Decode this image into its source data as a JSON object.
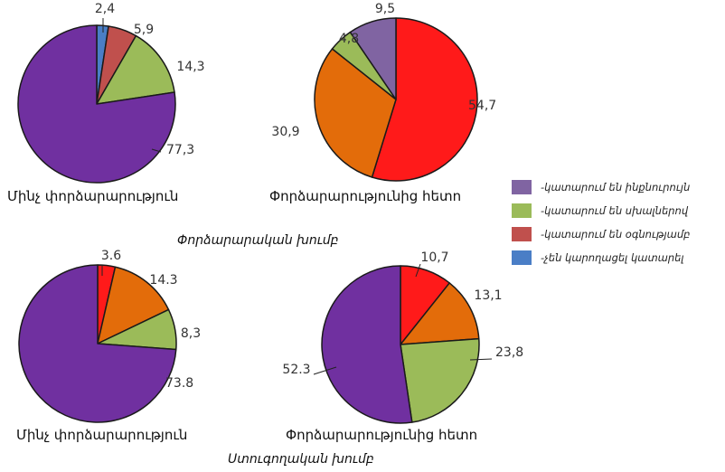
{
  "chart_data": [
    {
      "type": "pie",
      "caption": "Մինչ փորձարարություն",
      "slices": [
        {
          "label": "2,4",
          "value": 2.4,
          "color": "#4a7ec6"
        },
        {
          "label": "5,9",
          "value": 5.9,
          "color": "#c0504d"
        },
        {
          "label": "14,3",
          "value": 14.3,
          "color": "#9bbb59"
        },
        {
          "label": "77,3",
          "value": 77.3,
          "color": "#7030a0"
        }
      ]
    },
    {
      "type": "pie",
      "caption": "Փորձարարությունից հետո",
      "slices": [
        {
          "label": "54,7",
          "value": 54.7,
          "color": "#ff1a1a"
        },
        {
          "label": "30,9",
          "value": 30.9,
          "color": "#e36c0a"
        },
        {
          "label": "4,8",
          "value": 4.8,
          "color": "#9bbb59"
        },
        {
          "label": "9,5",
          "value": 9.5,
          "color": "#8064a2"
        }
      ]
    },
    {
      "type": "pie",
      "caption": "Մինչ փորձարարություն",
      "slices": [
        {
          "label": "3.6",
          "value": 3.6,
          "color": "#ff1a1a"
        },
        {
          "label": "14.3",
          "value": 14.3,
          "color": "#e36c0a"
        },
        {
          "label": "8,3",
          "value": 8.3,
          "color": "#9bbb59"
        },
        {
          "label": "73.8",
          "value": 73.8,
          "color": "#7030a0"
        }
      ]
    },
    {
      "type": "pie",
      "caption": "Փորձարարությունից հետո",
      "slices": [
        {
          "label": "10,7",
          "value": 10.7,
          "color": "#ff1a1a"
        },
        {
          "label": "13,1",
          "value": 13.1,
          "color": "#e36c0a"
        },
        {
          "label": "23,8",
          "value": 23.8,
          "color": "#9bbb59"
        },
        {
          "label": "52.3",
          "value": 52.3,
          "color": "#7030a0"
        }
      ]
    }
  ],
  "group_titles": {
    "experimental": "Փորձարարական խումբ",
    "control": "Ստուգողական խումբ"
  },
  "legend": [
    {
      "label": "-կատարում են ինքնուրույն",
      "color": "#8064a2"
    },
    {
      "label": "-կատարում են սխալներով",
      "color": "#9bbb59"
    },
    {
      "label": "-կատարում են օգնությամբ",
      "color": "#c0504d"
    },
    {
      "label": "-չեն կարողացել կատարել",
      "color": "#4a7ec6"
    }
  ]
}
